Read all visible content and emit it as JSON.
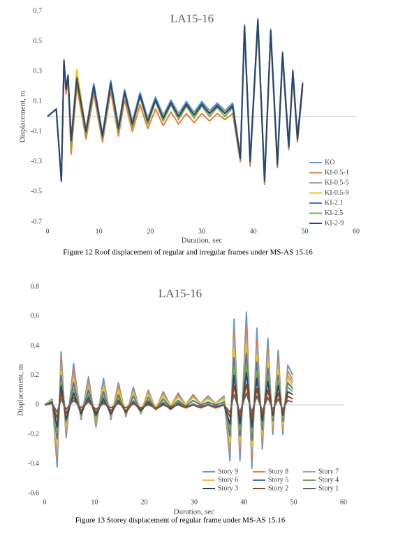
{
  "chart_data": [
    {
      "type": "line",
      "title": "LA15-16",
      "xlabel": "Duration, sec",
      "ylabel": "Displacement, m",
      "caption": "Figure 12 Roof displacement of regular and irregular frames under MS-AS 15.16",
      "xlim": [
        0,
        60
      ],
      "xticks": [
        0,
        10,
        20,
        30,
        40,
        50,
        60
      ],
      "ylim": [
        -0.7,
        0.7
      ],
      "yticks": [
        -0.7,
        -0.5,
        -0.3,
        -0.1,
        0.1,
        0.3,
        0.5,
        0.7
      ],
      "grid": false,
      "legend": "right",
      "x": [
        0,
        1.7,
        2.7,
        3.2,
        3.6,
        4.0,
        4.6,
        5.7,
        7.5,
        9.0,
        10.7,
        12.3,
        13.8,
        15.0,
        16.5,
        18.0,
        19.5,
        21.0,
        22.5,
        24.0,
        25.5,
        27.0,
        28.5,
        30.0,
        31.5,
        33.0,
        34.5,
        36.0,
        37.5,
        38.3,
        39.4,
        40.9,
        42.2,
        43.4,
        44.7,
        45.7,
        46.9,
        47.7,
        48.6,
        49.6
      ],
      "series": [
        {
          "name": "KO",
          "color": "#5b9bd5",
          "values": [
            0,
            0.05,
            -0.42,
            0.38,
            0.2,
            0.26,
            -0.14,
            0.27,
            -0.08,
            0.22,
            -0.11,
            0.24,
            -0.06,
            0.18,
            -0.03,
            0.16,
            -0.01,
            0.13,
            0.01,
            0.11,
            0.02,
            0.1,
            0.03,
            0.1,
            0.04,
            0.09,
            0.04,
            0.09,
            -0.26,
            0.61,
            -0.28,
            0.65,
            -0.42,
            0.58,
            -0.3,
            0.43,
            -0.18,
            0.31,
            -0.13,
            0.23
          ]
        },
        {
          "name": "KI-0.5-1",
          "color": "#ed7d31",
          "values": [
            0,
            0.05,
            -0.42,
            0.33,
            0.15,
            0.23,
            -0.25,
            0.2,
            -0.15,
            0.15,
            -0.17,
            0.17,
            -0.13,
            0.11,
            -0.1,
            0.08,
            -0.08,
            0.05,
            -0.06,
            0.03,
            -0.05,
            0.02,
            -0.04,
            0.02,
            -0.03,
            0.02,
            -0.02,
            0.02,
            -0.3,
            0.57,
            -0.33,
            0.6,
            -0.45,
            0.53,
            -0.34,
            0.38,
            -0.22,
            0.26,
            -0.17,
            0.18
          ]
        },
        {
          "name": "KI-0.5-5",
          "color": "#a5a5a5",
          "values": [
            0,
            0.05,
            -0.43,
            0.36,
            0.19,
            0.28,
            -0.15,
            0.26,
            -0.09,
            0.21,
            -0.12,
            0.23,
            -0.07,
            0.17,
            -0.04,
            0.15,
            -0.02,
            0.12,
            0.0,
            0.1,
            0.01,
            0.09,
            0.02,
            0.09,
            0.03,
            0.08,
            0.03,
            0.08,
            -0.27,
            0.59,
            -0.29,
            0.63,
            -0.42,
            0.56,
            -0.31,
            0.41,
            -0.19,
            0.29,
            -0.14,
            0.21
          ]
        },
        {
          "name": "KI-0.5-9",
          "color": "#ffc000",
          "values": [
            0,
            0.05,
            -0.42,
            0.35,
            0.2,
            0.27,
            -0.17,
            0.31,
            -0.09,
            0.2,
            -0.12,
            0.22,
            -0.07,
            0.16,
            -0.04,
            0.14,
            -0.02,
            0.11,
            0.0,
            0.09,
            0.01,
            0.08,
            0.02,
            0.08,
            0.03,
            0.07,
            0.03,
            0.07,
            -0.27,
            0.58,
            -0.3,
            0.62,
            -0.43,
            0.55,
            -0.31,
            0.4,
            -0.19,
            0.28,
            -0.15,
            0.2
          ]
        },
        {
          "name": "KI-2.1",
          "color": "#4472c4",
          "values": [
            0,
            0.05,
            -0.43,
            0.37,
            0.19,
            0.27,
            -0.16,
            0.26,
            -0.1,
            0.21,
            -0.13,
            0.23,
            -0.08,
            0.17,
            -0.05,
            0.15,
            -0.03,
            0.12,
            -0.01,
            0.1,
            0.0,
            0.09,
            0.01,
            0.09,
            0.02,
            0.08,
            0.02,
            0.08,
            -0.28,
            0.6,
            -0.3,
            0.64,
            -0.43,
            0.57,
            -0.32,
            0.42,
            -0.2,
            0.3,
            -0.15,
            0.22
          ]
        },
        {
          "name": "KI-2.5",
          "color": "#70ad47",
          "values": [
            0,
            0.05,
            -0.43,
            0.36,
            0.2,
            0.26,
            -0.19,
            0.24,
            -0.12,
            0.19,
            -0.15,
            0.21,
            -0.1,
            0.15,
            -0.07,
            0.13,
            -0.05,
            0.1,
            -0.03,
            0.08,
            -0.02,
            0.07,
            -0.01,
            0.07,
            0.0,
            0.06,
            0.0,
            0.06,
            -0.29,
            0.59,
            -0.31,
            0.63,
            -0.44,
            0.56,
            -0.33,
            0.41,
            -0.21,
            0.29,
            -0.16,
            0.21
          ]
        },
        {
          "name": "KI-2-9",
          "color": "#264478",
          "values": [
            0,
            0.05,
            -0.43,
            0.37,
            0.18,
            0.27,
            -0.16,
            0.25,
            -0.1,
            0.2,
            -0.13,
            0.22,
            -0.08,
            0.16,
            -0.05,
            0.14,
            -0.03,
            0.11,
            -0.01,
            0.09,
            0.0,
            0.08,
            0.01,
            0.08,
            0.02,
            0.07,
            0.02,
            0.07,
            -0.28,
            0.6,
            -0.3,
            0.64,
            -0.43,
            0.57,
            -0.32,
            0.42,
            -0.2,
            0.3,
            -0.15,
            0.22
          ]
        }
      ]
    },
    {
      "type": "line",
      "title": "LA15-16",
      "xlabel": "Duration, sec",
      "ylabel": "Displacement, m",
      "caption": "Figure 13 Storey displacement of regular frame under MS-AS 15.16",
      "xlim": [
        0,
        60
      ],
      "xticks": [
        0,
        10,
        20,
        30,
        40,
        50,
        60
      ],
      "ylim": [
        -0.6,
        0.8
      ],
      "yticks": [
        -0.6,
        -0.4,
        -0.2,
        0,
        0.2,
        0.4,
        0.6,
        0.8
      ],
      "grid": false,
      "legend": "bottom",
      "x": [
        0,
        1.5,
        2.5,
        3.3,
        4.3,
        5.8,
        7.3,
        8.8,
        10.3,
        11.8,
        13.3,
        14.8,
        16.3,
        17.8,
        19.3,
        20.8,
        22.3,
        23.8,
        25.3,
        26.8,
        28.3,
        29.8,
        31.3,
        32.8,
        34.3,
        36.0,
        37.2,
        38.0,
        39.2,
        40.5,
        41.6,
        42.6,
        43.7,
        44.8,
        45.8,
        46.9,
        47.8,
        48.8,
        49.8
      ],
      "series": [
        {
          "name": "Story 9",
          "color": "#5b9bd5",
          "values": [
            0,
            0.04,
            -0.42,
            0.36,
            -0.22,
            0.28,
            -0.1,
            0.19,
            -0.15,
            0.18,
            -0.1,
            0.15,
            -0.08,
            0.12,
            -0.06,
            0.1,
            -0.03,
            0.09,
            -0.01,
            0.08,
            0,
            0.07,
            0.01,
            0.06,
            0.01,
            0.06,
            -0.38,
            0.58,
            -0.38,
            0.63,
            -0.43,
            0.52,
            -0.3,
            0.45,
            -0.2,
            0.37,
            -0.2,
            0.27,
            0.2
          ]
        },
        {
          "name": "Story 8",
          "color": "#ed7d31",
          "values": [
            0,
            0.03,
            -0.36,
            0.31,
            -0.19,
            0.24,
            -0.09,
            0.16,
            -0.13,
            0.15,
            -0.09,
            0.13,
            -0.07,
            0.1,
            -0.05,
            0.09,
            -0.03,
            0.08,
            -0.01,
            0.07,
            0,
            0.06,
            0.01,
            0.05,
            0.01,
            0.05,
            -0.32,
            0.49,
            -0.32,
            0.54,
            -0.37,
            0.44,
            -0.26,
            0.38,
            -0.17,
            0.31,
            -0.17,
            0.23,
            0.17
          ]
        },
        {
          "name": "Story 7",
          "color": "#a5a5a5",
          "values": [
            0,
            0.03,
            -0.32,
            0.27,
            -0.17,
            0.21,
            -0.08,
            0.14,
            -0.11,
            0.14,
            -0.08,
            0.11,
            -0.06,
            0.09,
            -0.05,
            0.08,
            -0.02,
            0.07,
            -0.01,
            0.06,
            0,
            0.05,
            0.01,
            0.05,
            0.01,
            0.05,
            -0.29,
            0.44,
            -0.29,
            0.47,
            -0.32,
            0.39,
            -0.23,
            0.34,
            -0.15,
            0.28,
            -0.15,
            0.2,
            0.15
          ]
        },
        {
          "name": "Story 6",
          "color": "#ffc000",
          "values": [
            0,
            0.03,
            -0.27,
            0.23,
            -0.14,
            0.18,
            -0.07,
            0.12,
            -0.1,
            0.12,
            -0.07,
            0.1,
            -0.05,
            0.08,
            -0.04,
            0.07,
            -0.02,
            0.06,
            -0.01,
            0.05,
            0,
            0.05,
            0.01,
            0.04,
            0.01,
            0.04,
            -0.25,
            0.38,
            -0.25,
            0.41,
            -0.28,
            0.34,
            -0.2,
            0.29,
            -0.13,
            0.24,
            -0.13,
            0.18,
            0.13
          ]
        },
        {
          "name": "Story 5",
          "color": "#4472c4",
          "values": [
            0,
            0.02,
            -0.23,
            0.2,
            -0.12,
            0.15,
            -0.07,
            0.1,
            -0.09,
            0.09,
            -0.07,
            0.07,
            -0.06,
            0.06,
            -0.05,
            0.05,
            -0.03,
            0.04,
            -0.02,
            0.03,
            -0.01,
            0.03,
            0,
            0.02,
            0,
            0.02,
            -0.21,
            0.32,
            -0.21,
            0.35,
            -0.24,
            0.29,
            -0.17,
            0.25,
            -0.11,
            0.2,
            -0.11,
            0.15,
            0.11
          ]
        },
        {
          "name": "Story 4",
          "color": "#70ad47",
          "values": [
            0,
            0.02,
            -0.19,
            0.16,
            -0.12,
            0.11,
            -0.07,
            0.07,
            -0.09,
            0.06,
            -0.07,
            0.05,
            -0.06,
            0.03,
            -0.05,
            0.03,
            -0.03,
            0.02,
            -0.02,
            0.02,
            -0.02,
            0.01,
            -0.02,
            0.01,
            -0.02,
            0.01,
            -0.17,
            0.26,
            -0.17,
            0.28,
            -0.19,
            0.23,
            -0.14,
            0.2,
            -0.09,
            0.17,
            -0.09,
            0.12,
            0.09
          ]
        },
        {
          "name": "Story 3",
          "color": "#264478",
          "values": [
            0,
            0.02,
            -0.15,
            0.13,
            -0.1,
            0.08,
            -0.06,
            0.05,
            -0.07,
            0.04,
            -0.06,
            0.03,
            -0.05,
            0.02,
            -0.04,
            0.02,
            -0.03,
            0.01,
            -0.03,
            0.01,
            -0.02,
            0,
            -0.02,
            0,
            -0.02,
            0,
            -0.13,
            0.2,
            -0.13,
            0.22,
            -0.15,
            0.18,
            -0.11,
            0.16,
            -0.07,
            0.13,
            -0.07,
            0.09,
            0.07
          ]
        },
        {
          "name": "Story 2",
          "color": "#9e480e",
          "values": [
            0,
            0.01,
            -0.09,
            0.08,
            -0.06,
            0.05,
            -0.04,
            0.03,
            -0.05,
            0.02,
            -0.04,
            0.02,
            -0.04,
            0.01,
            -0.03,
            0.01,
            -0.03,
            0,
            -0.02,
            0,
            -0.02,
            0,
            -0.02,
            0,
            -0.02,
            0,
            -0.08,
            0.13,
            -0.08,
            0.14,
            -0.09,
            0.11,
            -0.07,
            0.1,
            -0.05,
            0.08,
            -0.05,
            0.06,
            0.04
          ]
        },
        {
          "name": "Story 1",
          "color": "#636363",
          "values": [
            0,
            0.01,
            -0.05,
            0.04,
            -0.03,
            0.03,
            -0.02,
            0.02,
            -0.03,
            0.01,
            -0.02,
            0.01,
            -0.02,
            0.01,
            -0.02,
            0,
            -0.02,
            0,
            -0.01,
            0,
            -0.01,
            0,
            -0.01,
            0,
            -0.01,
            0,
            -0.05,
            0.07,
            -0.05,
            0.08,
            -0.05,
            0.06,
            -0.04,
            0.05,
            -0.03,
            0.04,
            -0.03,
            0.03,
            0.02
          ]
        }
      ]
    }
  ]
}
